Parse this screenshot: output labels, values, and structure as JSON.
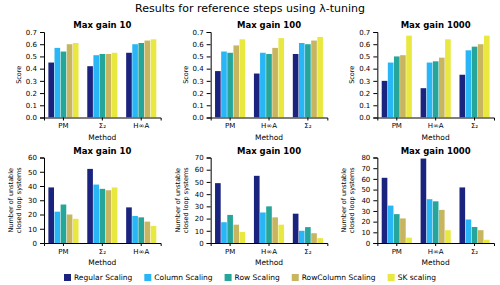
{
  "title": "Results for reference steps using λ-tuning",
  "chart_data": [
    {
      "type": "bar",
      "title": "Max gain 10",
      "xlabel": "Method",
      "ylabel": "Score",
      "categories": [
        "PM",
        "Σ₂",
        "H∞A"
      ],
      "series": [
        {
          "color": "#1a237e",
          "values": [
            0.45,
            0.42,
            0.53
          ]
        },
        {
          "color": "#29b6f6",
          "values": [
            0.57,
            0.51,
            0.6
          ]
        },
        {
          "color": "#26a69a",
          "values": [
            0.54,
            0.52,
            0.61
          ]
        },
        {
          "color": "#c8b560",
          "values": [
            0.6,
            0.52,
            0.63
          ]
        },
        {
          "color": "#e8e840",
          "values": [
            0.61,
            0.53,
            0.64
          ]
        }
      ],
      "ylim": [
        0,
        0.7
      ],
      "yticks": [
        {
          "value": 0,
          "label": "0.0"
        },
        0.1,
        0.2,
        0.3,
        0.4,
        0.5,
        0.6,
        0.7
      ]
    },
    {
      "type": "bar",
      "title": "Max gain 100",
      "xlabel": "Method",
      "ylabel": "Score",
      "categories": [
        "PM",
        "H∞A",
        "Σ₂"
      ],
      "series": [
        {
          "color": "#1a237e",
          "values": [
            0.38,
            0.36,
            0.52
          ]
        },
        {
          "color": "#29b6f6",
          "values": [
            0.54,
            0.53,
            0.61
          ]
        },
        {
          "color": "#26a69a",
          "values": [
            0.53,
            0.52,
            0.6
          ]
        },
        {
          "color": "#c8b560",
          "values": [
            0.59,
            0.57,
            0.63
          ]
        },
        {
          "color": "#e8e840",
          "values": [
            0.64,
            0.65,
            0.66
          ]
        }
      ],
      "ylim": [
        0,
        0.7
      ],
      "yticks": [
        {
          "value": 0,
          "label": "0.0"
        },
        0.1,
        0.2,
        0.3,
        0.4,
        0.5,
        0.6,
        0.7
      ]
    },
    {
      "type": "bar",
      "title": "Max gain 1000",
      "xlabel": "Method",
      "ylabel": "Score",
      "categories": [
        "PM",
        "H∞A",
        "Σ₂"
      ],
      "series": [
        {
          "color": "#1a237e",
          "values": [
            0.3,
            0.24,
            0.35
          ]
        },
        {
          "color": "#29b6f6",
          "values": [
            0.45,
            0.45,
            0.55
          ]
        },
        {
          "color": "#26a69a",
          "values": [
            0.5,
            0.46,
            0.58
          ]
        },
        {
          "color": "#c8b560",
          "values": [
            0.51,
            0.49,
            0.6
          ]
        },
        {
          "color": "#e8e840",
          "values": [
            0.67,
            0.64,
            0.67
          ]
        }
      ],
      "ylim": [
        0,
        0.7
      ],
      "yticks": [
        {
          "value": 0,
          "label": "0.0"
        },
        0.1,
        0.2,
        0.3,
        0.4,
        0.5,
        0.6,
        0.7
      ]
    },
    {
      "type": "bar",
      "title": "Max gain 10",
      "xlabel": "Method",
      "ylabel": "Number of unstable closed loop systems",
      "categories": [
        "PM",
        "Σ₂",
        "H∞A"
      ],
      "series": [
        {
          "color": "#1a237e",
          "values": [
            39,
            52,
            25
          ]
        },
        {
          "color": "#29b6f6",
          "values": [
            22,
            41,
            19
          ]
        },
        {
          "color": "#26a69a",
          "values": [
            27,
            38,
            18
          ]
        },
        {
          "color": "#c8b560",
          "values": [
            20,
            37,
            15
          ]
        },
        {
          "color": "#e8e840",
          "values": [
            17,
            39,
            12
          ]
        }
      ],
      "ylim": [
        0,
        60
      ],
      "yticks": [
        0,
        10,
        20,
        30,
        40,
        50,
        60
      ]
    },
    {
      "type": "bar",
      "title": "Max gain 100",
      "xlabel": "Method",
      "ylabel": "Number of unstable closed loop systems",
      "categories": [
        "PM",
        "H∞A",
        "Σ₂"
      ],
      "series": [
        {
          "color": "#1a237e",
          "values": [
            49,
            55,
            24
          ]
        },
        {
          "color": "#29b6f6",
          "values": [
            17,
            25,
            10
          ]
        },
        {
          "color": "#26a69a",
          "values": [
            23,
            30,
            13
          ]
        },
        {
          "color": "#c8b560",
          "values": [
            15,
            21,
            8
          ]
        },
        {
          "color": "#e8e840",
          "values": [
            9,
            15,
            4
          ]
        }
      ],
      "ylim": [
        0,
        70
      ],
      "yticks": [
        0,
        10,
        20,
        30,
        40,
        50,
        60,
        70
      ]
    },
    {
      "type": "bar",
      "title": "Max gain 1000",
      "xlabel": "Method",
      "ylabel": "Number of unstable closed loop systems",
      "categories": [
        "PM",
        "H∞A",
        "Σ₂"
      ],
      "series": [
        {
          "name": "Regular Scaling",
          "color": "#1a237e",
          "values": [
            61,
            79,
            52
          ]
        },
        {
          "name": "Column Scaling",
          "color": "#29b6f6",
          "values": [
            35,
            41,
            22
          ]
        },
        {
          "name": "Row Scaling",
          "color": "#26a69a",
          "values": [
            27,
            39,
            15
          ]
        },
        {
          "name": "RowColumn Scaling",
          "color": "#c8b560",
          "values": [
            23,
            31,
            12
          ]
        },
        {
          "name": "SK scaling",
          "color": "#e8e840",
          "values": [
            5,
            12,
            3
          ]
        }
      ],
      "ylim": [
        0,
        80
      ],
      "yticks": [
        0,
        10,
        20,
        30,
        40,
        50,
        60,
        70,
        80
      ],
      "legend": "bottom"
    }
  ]
}
